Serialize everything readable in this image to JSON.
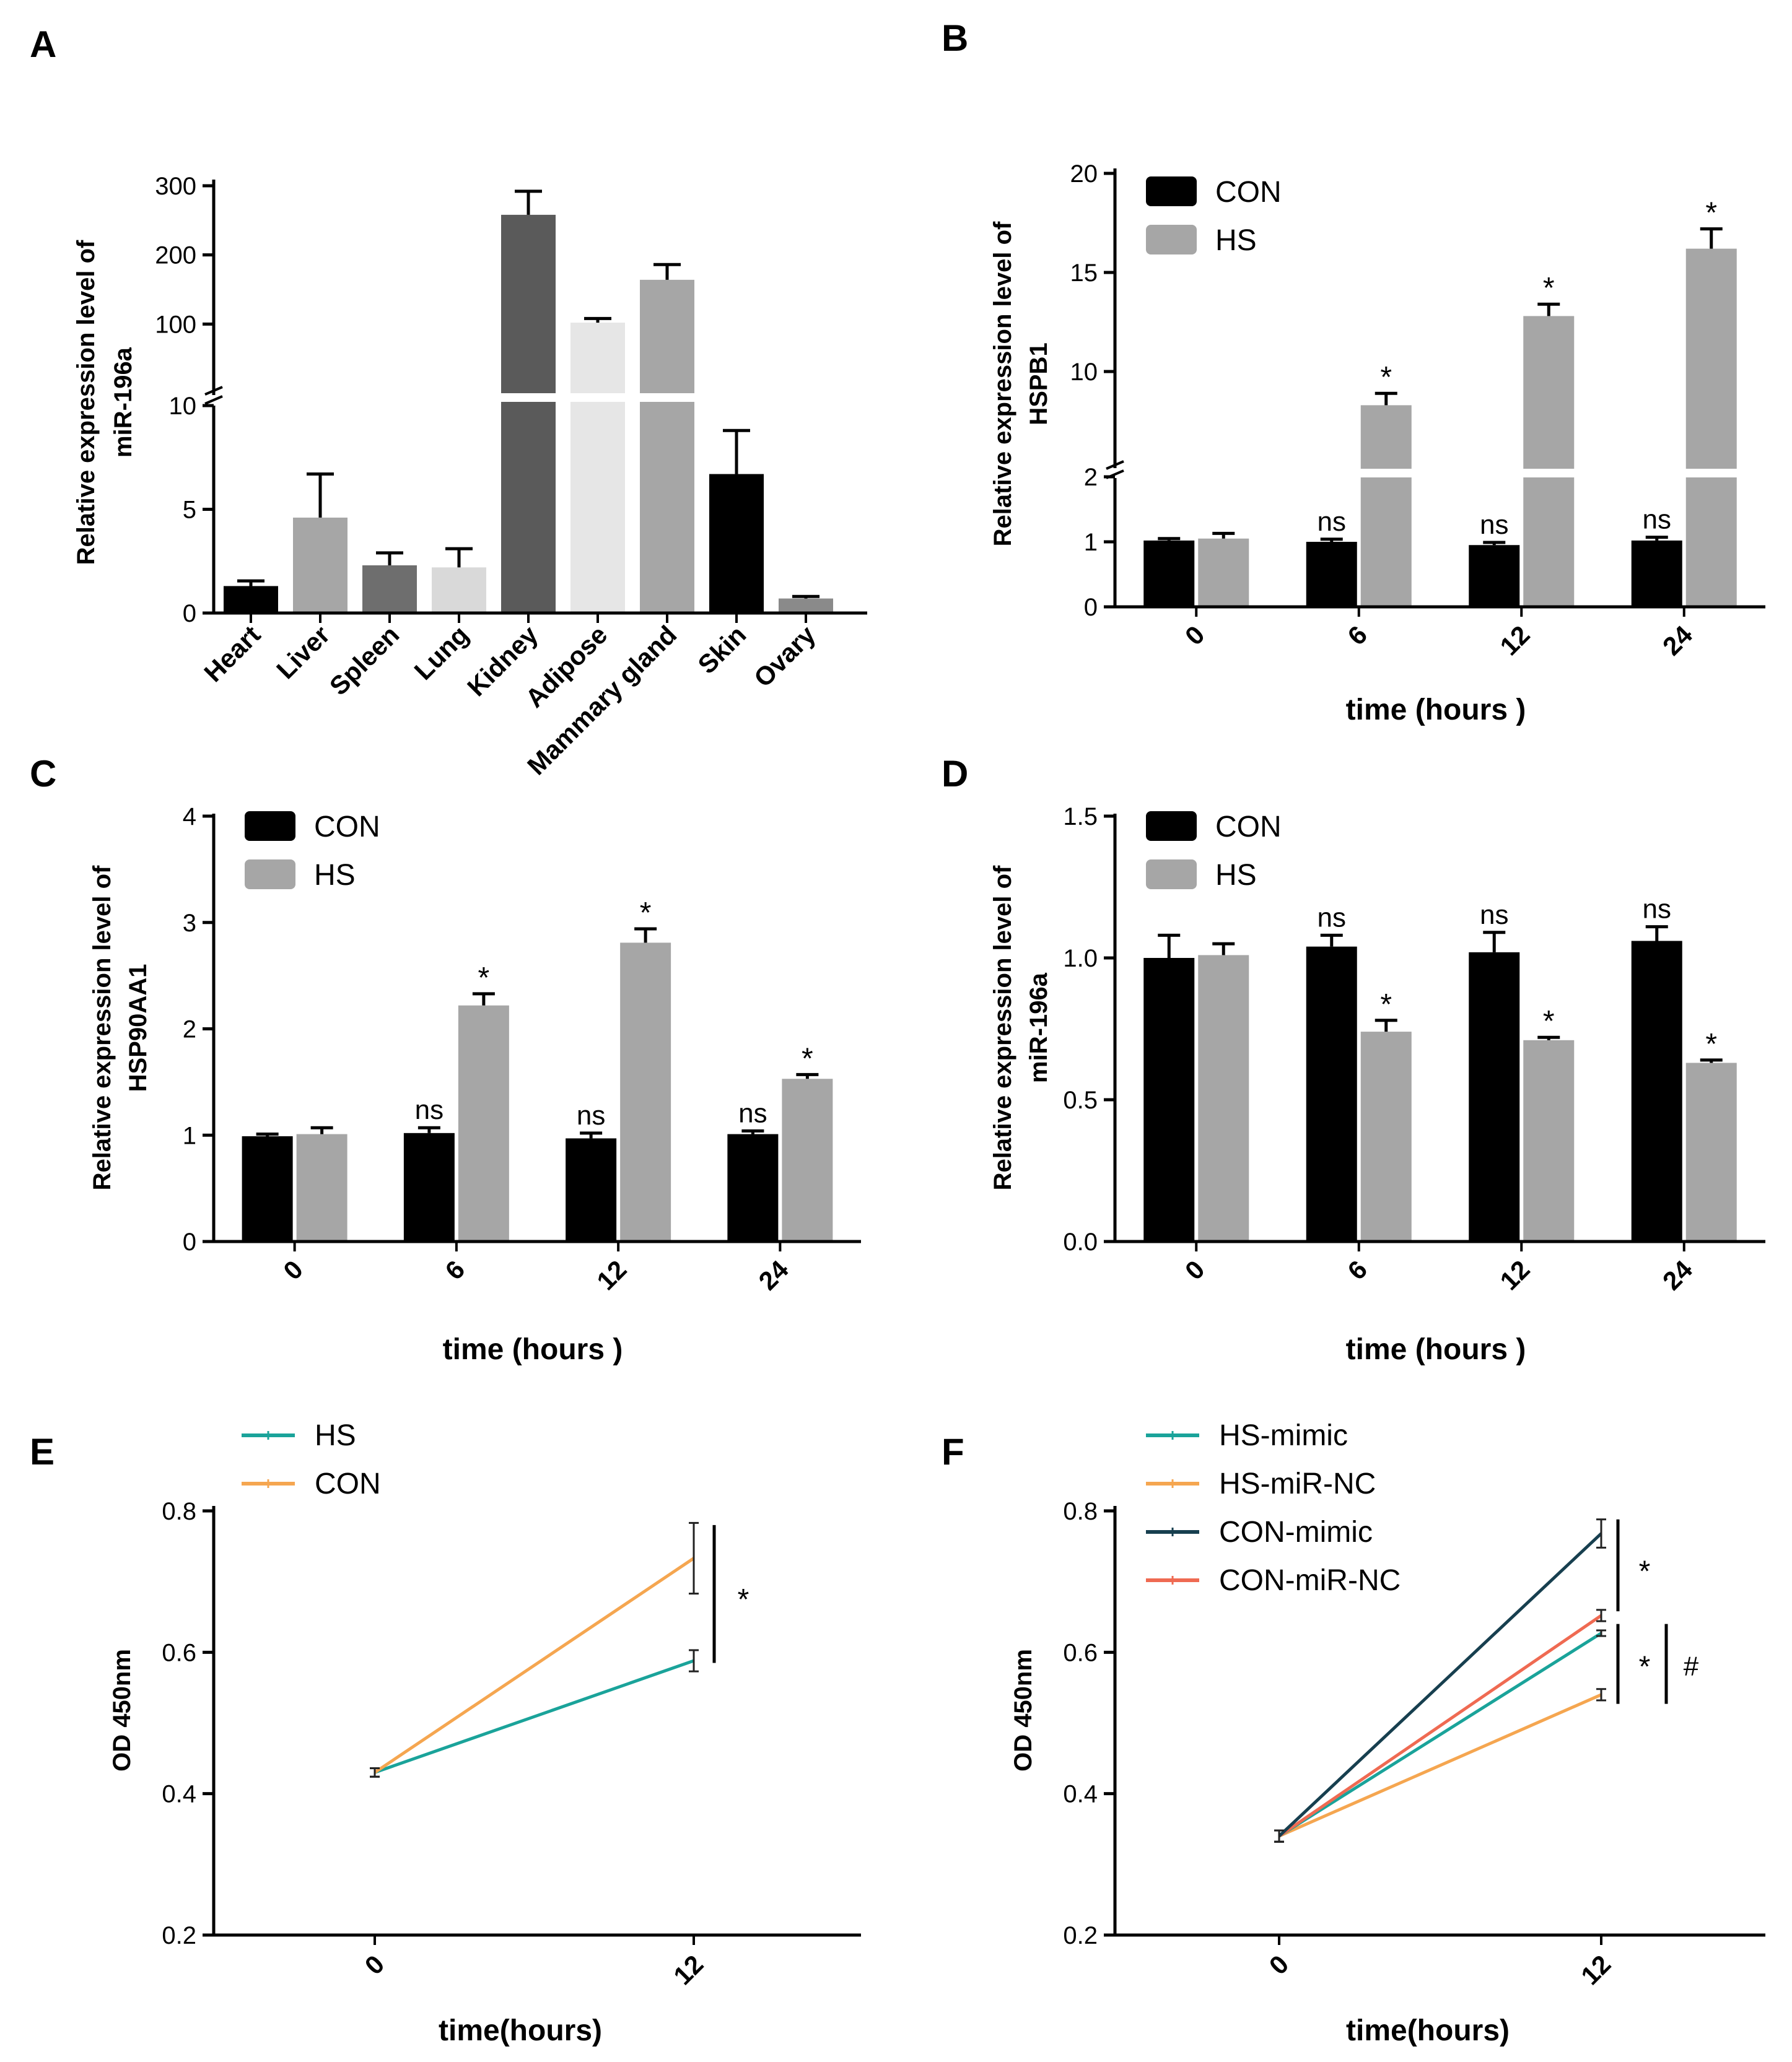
{
  "chart_data": [
    {
      "panel": "A",
      "type": "bar",
      "ylabel": "Relative  expression level of miR-196a",
      "ylabel_lines": [
        "Relative  expression level of",
        "miR-196a"
      ],
      "categories": [
        "Heart",
        "Liver",
        "Spleen",
        "Lung",
        "Kidney",
        "Adipose",
        "Mammary gland",
        "Skin",
        "Ovary"
      ],
      "values": [
        1.3,
        4.6,
        2.3,
        2.2,
        258,
        102,
        164,
        6.7,
        0.7
      ],
      "errors": [
        0.25,
        2.1,
        0.6,
        0.9,
        34,
        6,
        22,
        2.1,
        0.1
      ],
      "colors": [
        "#000000",
        "#a6a6a6",
        "#6e6e6e",
        "#d9d9d9",
        "#5a5a5a",
        "#e6e6e6",
        "#a6a6a6",
        "#000000",
        "#8a8a8a"
      ],
      "axis_break": true,
      "lower_range": [
        0,
        10
      ],
      "upper_range": [
        0,
        300
      ],
      "yticks_lower": [
        "0",
        "5",
        "10"
      ],
      "yticks_upper": [
        "100",
        "200",
        "300"
      ]
    },
    {
      "panel": "B",
      "type": "bar",
      "ylabel": "Relative  expression level of HSPB1",
      "ylabel_lines": [
        "Relative  expression level of",
        "HSPB1"
      ],
      "xlabel": "time (hours )",
      "categories": [
        "0",
        "6",
        "12",
        "24"
      ],
      "series": [
        {
          "name": "CON",
          "values": [
            1.02,
            1.0,
            0.95,
            1.02
          ],
          "errors": [
            0.03,
            0.04,
            0.04,
            0.05
          ],
          "color": "#000000"
        },
        {
          "name": "HS",
          "values": [
            1.05,
            8.3,
            12.8,
            16.2
          ],
          "errors": [
            0.08,
            0.6,
            0.6,
            1.0
          ],
          "color": "#a6a6a6"
        }
      ],
      "significance": [
        {
          "con": "",
          "hs": ""
        },
        {
          "con": "ns",
          "hs": "*"
        },
        {
          "con": "ns",
          "hs": "*"
        },
        {
          "con": "ns",
          "hs": "*"
        }
      ],
      "axis_break": true,
      "lower_range": [
        0,
        2
      ],
      "upper_range": [
        5,
        20
      ],
      "yticks_lower": [
        "0",
        "1",
        "2"
      ],
      "yticks_upper": [
        "10",
        "15",
        "20"
      ]
    },
    {
      "panel": "C",
      "type": "bar",
      "ylabel": "Relative  expression level of HSP90AA1",
      "ylabel_lines": [
        "Relative  expression level of",
        "HSP90AA1"
      ],
      "xlabel": "time (hours )",
      "categories": [
        "0",
        "6",
        "12",
        "24"
      ],
      "series": [
        {
          "name": "CON",
          "values": [
            0.99,
            1.02,
            0.97,
            1.01
          ],
          "errors": [
            0.02,
            0.05,
            0.05,
            0.03
          ],
          "color": "#000000"
        },
        {
          "name": "HS",
          "values": [
            1.01,
            2.22,
            2.81,
            1.53
          ],
          "errors": [
            0.06,
            0.11,
            0.13,
            0.04
          ],
          "color": "#a6a6a6"
        }
      ],
      "significance": [
        {
          "con": "",
          "hs": ""
        },
        {
          "con": "ns",
          "hs": "*"
        },
        {
          "con": "ns",
          "hs": "*"
        },
        {
          "con": "ns",
          "hs": "*"
        }
      ],
      "ylim": [
        0,
        4
      ],
      "yticks": [
        "0",
        "1",
        "2",
        "3",
        "4"
      ]
    },
    {
      "panel": "D",
      "type": "bar",
      "ylabel": "Relative  expression level of miR-196a",
      "ylabel_lines": [
        "Relative  expression level of",
        "miR-196a"
      ],
      "xlabel": "time (hours )",
      "categories": [
        "0",
        "6",
        "12",
        "24"
      ],
      "series": [
        {
          "name": "CON",
          "values": [
            1.0,
            1.04,
            1.02,
            1.06
          ],
          "errors": [
            0.08,
            0.04,
            0.07,
            0.05
          ],
          "color": "#000000"
        },
        {
          "name": "HS",
          "values": [
            1.01,
            0.74,
            0.71,
            0.63
          ],
          "errors": [
            0.04,
            0.04,
            0.01,
            0.01
          ],
          "color": "#a6a6a6"
        }
      ],
      "significance": [
        {
          "con": "",
          "hs": ""
        },
        {
          "con": "ns",
          "hs": "*"
        },
        {
          "con": "ns",
          "hs": "*"
        },
        {
          "con": "ns",
          "hs": "*"
        }
      ],
      "ylim": [
        0,
        1.5
      ],
      "yticks": [
        "0.0",
        "0.5",
        "1.0",
        "1.5"
      ]
    },
    {
      "panel": "E",
      "type": "line",
      "ylabel": "OD 450nm",
      "xlabel": "time(hours)",
      "x": [
        "0",
        "12"
      ],
      "series": [
        {
          "name": "HS",
          "values": [
            0.43,
            0.588
          ],
          "errors": [
            0.006,
            0.015
          ],
          "color": "#1aa39a"
        },
        {
          "name": "CON",
          "values": [
            0.43,
            0.733
          ],
          "errors": [
            0.006,
            0.05
          ],
          "color": "#f5a650"
        }
      ],
      "ylim": [
        0.2,
        0.8
      ],
      "yticks": [
        "0.2",
        "0.4",
        "0.6",
        "0.8"
      ],
      "annotations": [
        "*"
      ]
    },
    {
      "panel": "F",
      "type": "line",
      "ylabel": "OD 450nm",
      "xlabel": "time(hours)",
      "x": [
        "0",
        "12"
      ],
      "series": [
        {
          "name": "HS-mimic",
          "values": [
            0.34,
            0.627
          ],
          "errors": [
            0.008,
            0.004
          ],
          "color": "#1aa39a"
        },
        {
          "name": "HS-miR-NC",
          "values": [
            0.34,
            0.54
          ],
          "errors": [
            0.008,
            0.008
          ],
          "color": "#f5a650"
        },
        {
          "name": "CON-mimic",
          "values": [
            0.34,
            0.768
          ],
          "errors": [
            0.008,
            0.02
          ],
          "color": "#173f4f"
        },
        {
          "name": "CON-miR-NC",
          "values": [
            0.34,
            0.652
          ],
          "errors": [
            0.008,
            0.008
          ],
          "color": "#ef6a52"
        }
      ],
      "ylim": [
        0.2,
        0.8
      ],
      "yticks": [
        "0.2",
        "0.4",
        "0.6",
        "0.8"
      ],
      "annotations": [
        "*",
        "*",
        "#"
      ]
    }
  ]
}
